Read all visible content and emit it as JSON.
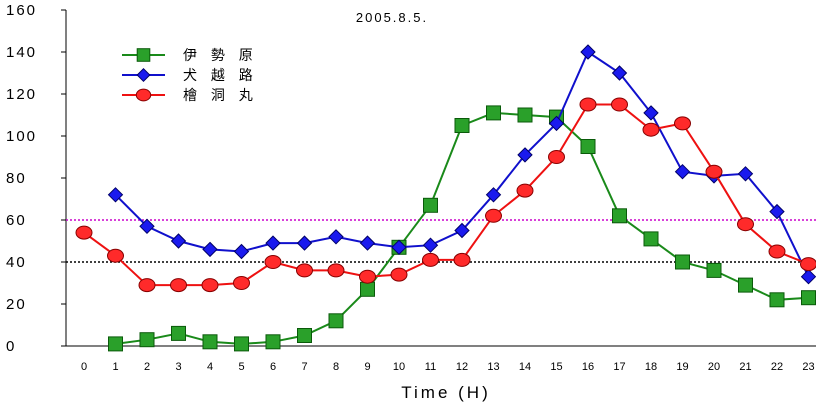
{
  "chart_data": {
    "type": "line",
    "title": "2005.8.5.",
    "xlabel": "Time (H)",
    "ylabel": "",
    "x": [
      0,
      1,
      2,
      3,
      4,
      5,
      6,
      7,
      8,
      9,
      10,
      11,
      12,
      13,
      14,
      15,
      16,
      17,
      18,
      19,
      20,
      21,
      22,
      23
    ],
    "x_tick_labels": [
      "0",
      "1",
      "2",
      "3",
      "4",
      "5",
      "6",
      "7",
      "8",
      "9",
      "10",
      "11",
      "12",
      "13",
      "14",
      "15",
      "16",
      "17",
      "18",
      "19",
      "20",
      "21",
      "22",
      "23"
    ],
    "ylim": [
      0,
      160
    ],
    "y_ticks": [
      0,
      20,
      40,
      60,
      80,
      100,
      120,
      140,
      160
    ],
    "y_tick_labels": [
      "0",
      "20",
      "40",
      "60",
      "80",
      "100",
      "120",
      "140",
      "160"
    ],
    "grid": false,
    "legend_position": "top-left",
    "reference_lines": [
      {
        "y": 60,
        "color": "#cc00cc",
        "style": "dotted"
      },
      {
        "y": 40,
        "color": "#000000",
        "style": "dotted"
      }
    ],
    "series": [
      {
        "name": "伊 勢 原",
        "color": "#1a8a1a",
        "marker": "square",
        "marker_fill": "#2aa02a",
        "x": [
          1,
          2,
          3,
          4,
          5,
          6,
          7,
          8,
          9,
          10,
          11,
          12,
          13,
          14,
          15,
          16,
          17,
          18,
          19,
          20,
          21,
          22,
          23
        ],
        "values": [
          1,
          3,
          6,
          2,
          1,
          2,
          5,
          12,
          27,
          47,
          67,
          105,
          111,
          110,
          109,
          95,
          62,
          51,
          40,
          36,
          29,
          22,
          23
        ]
      },
      {
        "name": "犬 越 路",
        "color": "#1010cc",
        "marker": "diamond",
        "marker_fill": "#1a1aee",
        "x": [
          1,
          2,
          3,
          4,
          5,
          6,
          7,
          8,
          9,
          10,
          11,
          12,
          13,
          14,
          15,
          16,
          17,
          18,
          19,
          20,
          21,
          22,
          23
        ],
        "values": [
          72,
          57,
          50,
          46,
          45,
          49,
          49,
          52,
          49,
          47,
          48,
          55,
          72,
          91,
          106,
          140,
          130,
          111,
          83,
          81,
          82,
          64,
          33
        ]
      },
      {
        "name": "檜 洞 丸",
        "color": "#ee1111",
        "marker": "circle",
        "marker_fill": "#ff2a2a",
        "x": [
          0,
          1,
          2,
          3,
          4,
          5,
          6,
          7,
          8,
          9,
          10,
          11,
          12,
          13,
          14,
          15,
          16,
          17,
          18,
          19,
          20,
          21,
          22,
          23
        ],
        "values": [
          54,
          43,
          29,
          29,
          29,
          30,
          40,
          36,
          36,
          33,
          34,
          41,
          41,
          62,
          74,
          90,
          115,
          115,
          103,
          106,
          83,
          58,
          45,
          39
        ]
      }
    ]
  }
}
